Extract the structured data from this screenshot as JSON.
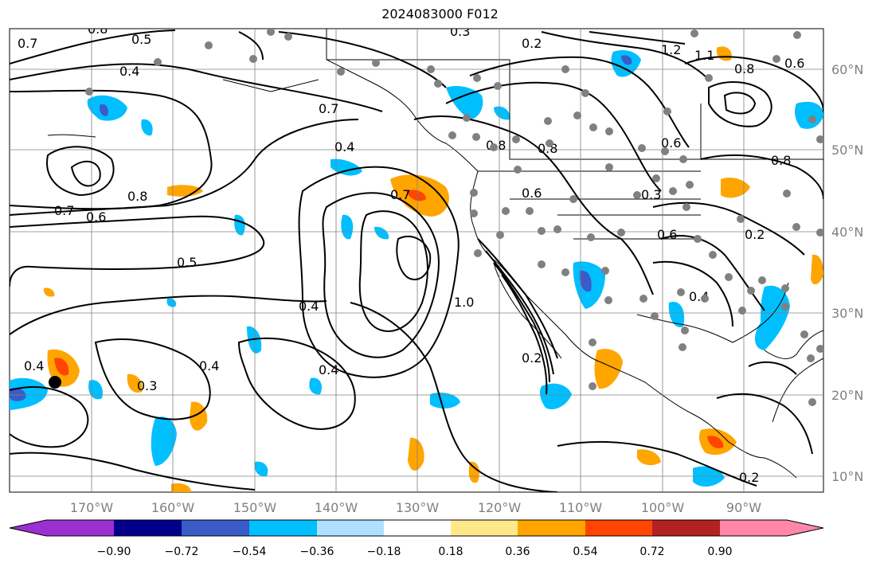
{
  "title": "2024083000 F012",
  "lat_labels": [
    "60°N",
    "50°N",
    "40°N",
    "30°N",
    "20°N",
    "10°N"
  ],
  "lon_labels": [
    "170°W",
    "160°W",
    "150°W",
    "140°W",
    "130°W",
    "120°W",
    "110°W",
    "100°W",
    "90°W"
  ],
  "colorbar": {
    "ticks": [
      "−0.90",
      "−0.72",
      "−0.54",
      "−0.36",
      "−0.18",
      "0.18",
      "0.36",
      "0.54",
      "0.72",
      "0.90"
    ],
    "colors": [
      "#9b30d0",
      "#00008b",
      "#3a5bc8",
      "#00bfff",
      "#b0e0ff",
      "#ffffff",
      "#ffe88a",
      "#ffa500",
      "#ff4500",
      "#b22222",
      "#ff88aa"
    ]
  },
  "contour_labels": [
    "0.7",
    "0.8",
    "0.5",
    "0.4",
    "0.3",
    "0.2",
    "0.6",
    "1.0",
    "1.1",
    "1.2",
    "0.7",
    "0.8",
    "0.6",
    "0.5",
    "0.4",
    "0.4",
    "0.4",
    "0.3",
    "0.2",
    "0.8",
    "0.8",
    "0.6",
    "0.6",
    "0.3",
    "0.2",
    "0.4",
    "0.2",
    "0.2"
  ],
  "colors": {
    "grid": "#808080",
    "contour": "#000000",
    "station": "#808080"
  }
}
